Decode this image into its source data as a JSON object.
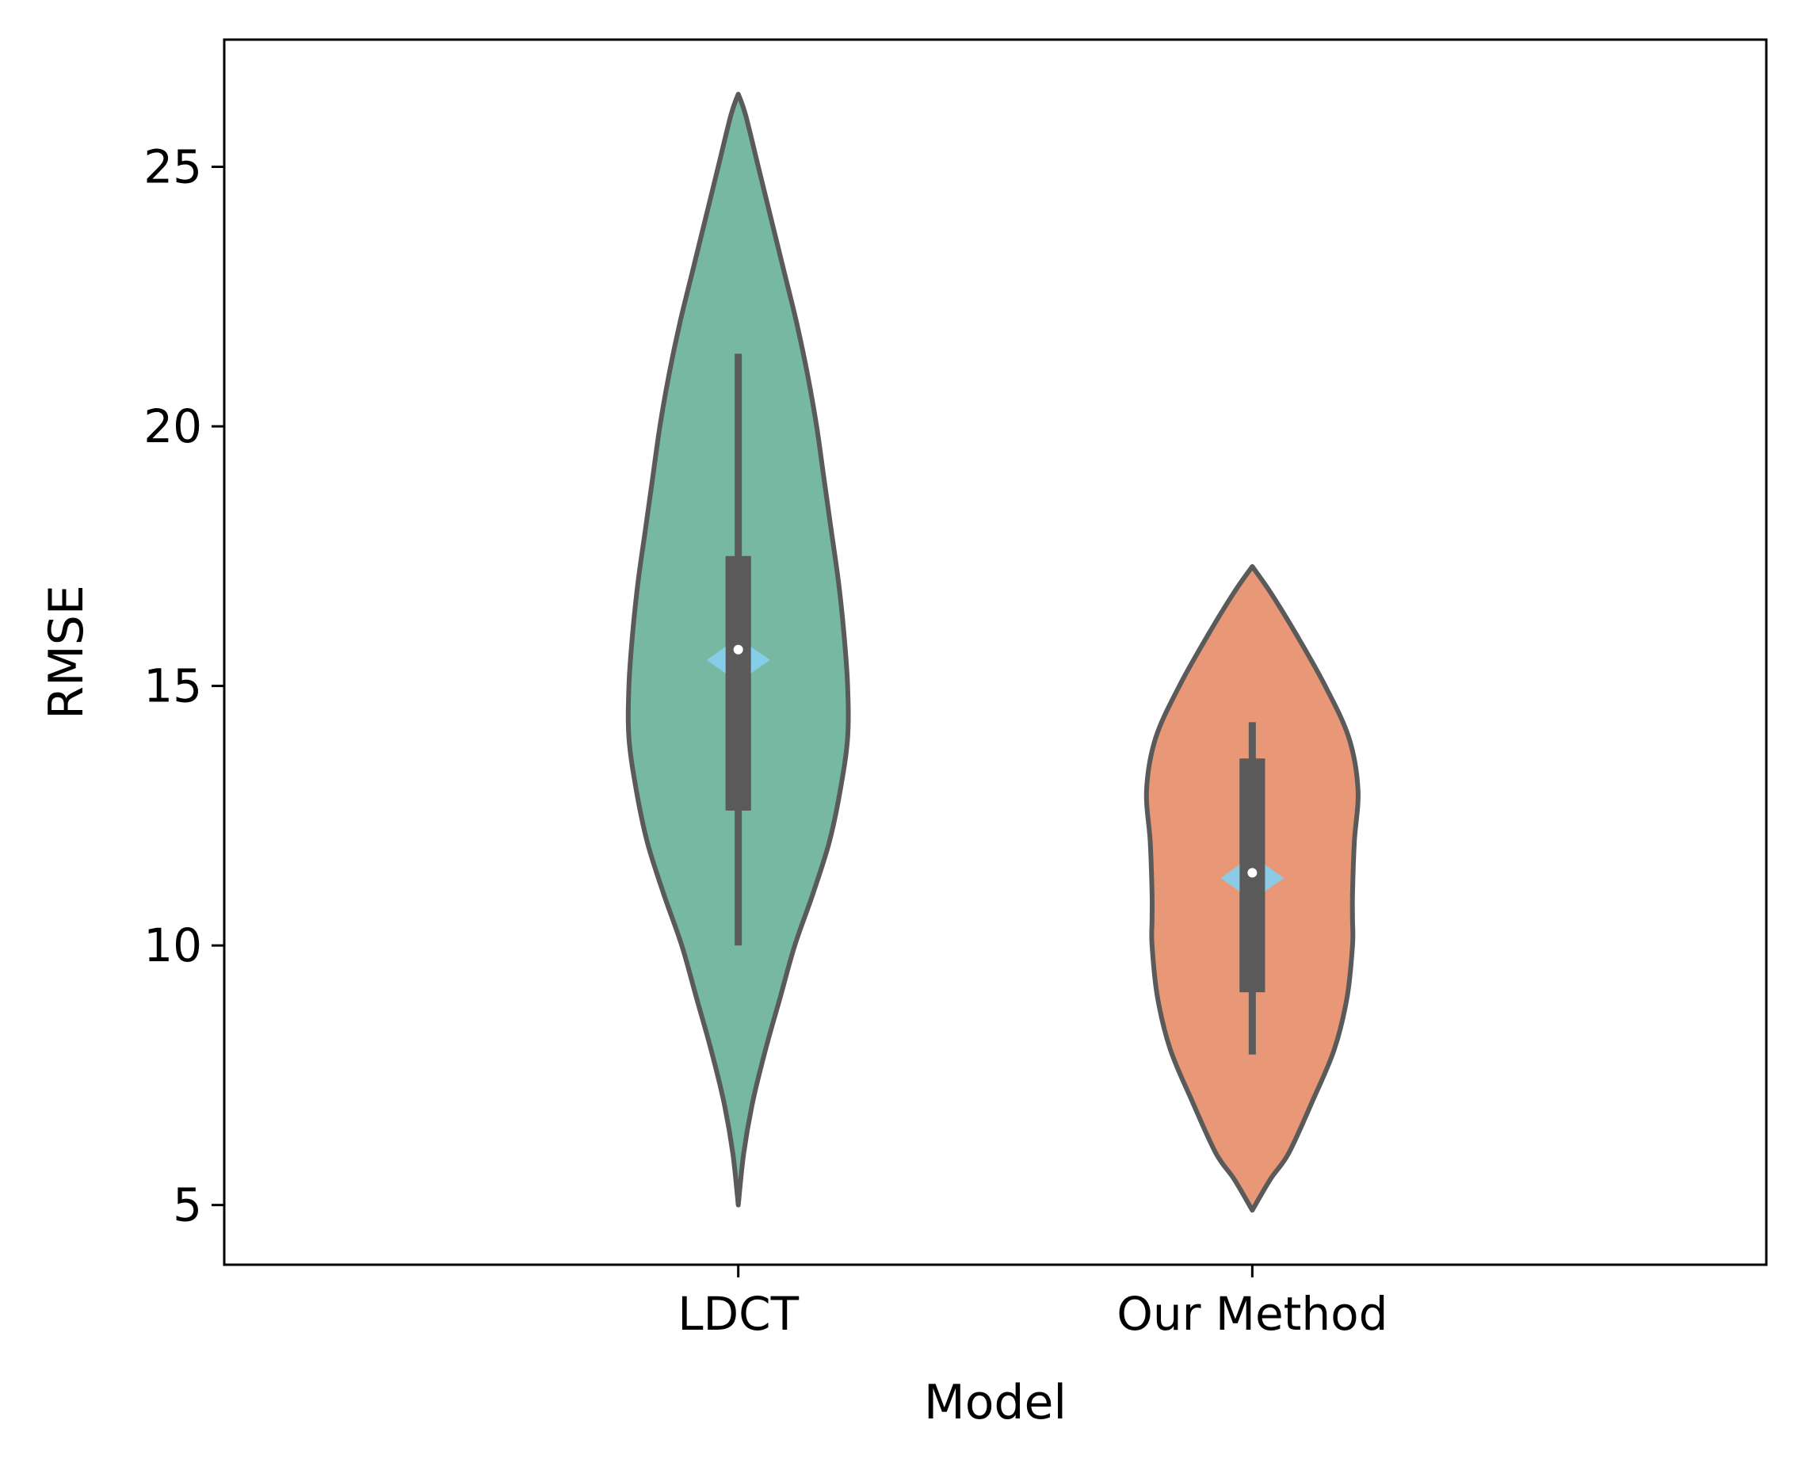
{
  "chart_data": {
    "type": "violin",
    "xlabel": "Model",
    "ylabel": "RMSE",
    "ylim": [
      3.85,
      27.45
    ],
    "yticks": [
      5,
      10,
      15,
      20,
      25
    ],
    "categories": [
      "LDCT",
      "Our Method"
    ],
    "outline_color": "#5a5a5a",
    "diamond_color": "#87ceeb",
    "series": [
      {
        "name": "LDCT",
        "fill": "#76b8a2",
        "range": [
          5.0,
          26.4
        ],
        "q1": 12.6,
        "median": 15.7,
        "q3": 17.5,
        "whisker_low": 10.0,
        "whisker_high": 21.4,
        "mean": 15.5,
        "density_y": [
          5.0,
          6.0,
          7.0,
          8.0,
          9.0,
          10.0,
          11.0,
          12.0,
          13.0,
          14.0,
          15.0,
          16.0,
          17.0,
          18.0,
          19.0,
          20.0,
          21.0,
          22.0,
          23.0,
          24.0,
          25.0,
          26.0,
          26.4
        ],
        "density_w": [
          0.0,
          0.03,
          0.08,
          0.15,
          0.23,
          0.31,
          0.41,
          0.5,
          0.56,
          0.6,
          0.6,
          0.58,
          0.55,
          0.51,
          0.47,
          0.43,
          0.38,
          0.32,
          0.25,
          0.18,
          0.11,
          0.04,
          0.0
        ]
      },
      {
        "name": "Our Method",
        "fill": "#e99877",
        "range": [
          4.9,
          17.3
        ],
        "q1": 9.1,
        "median": 11.4,
        "q3": 13.6,
        "whisker_low": 7.9,
        "whisker_high": 14.3,
        "mean": 11.3,
        "density_y": [
          4.9,
          5.5,
          6.0,
          7.0,
          8.0,
          9.0,
          10.0,
          10.5,
          11.0,
          12.0,
          13.0,
          14.0,
          15.0,
          16.0,
          16.8,
          17.3
        ],
        "density_w": [
          0.0,
          0.1,
          0.2,
          0.33,
          0.45,
          0.52,
          0.55,
          0.55,
          0.55,
          0.56,
          0.58,
          0.53,
          0.4,
          0.24,
          0.1,
          0.0
        ]
      }
    ]
  }
}
